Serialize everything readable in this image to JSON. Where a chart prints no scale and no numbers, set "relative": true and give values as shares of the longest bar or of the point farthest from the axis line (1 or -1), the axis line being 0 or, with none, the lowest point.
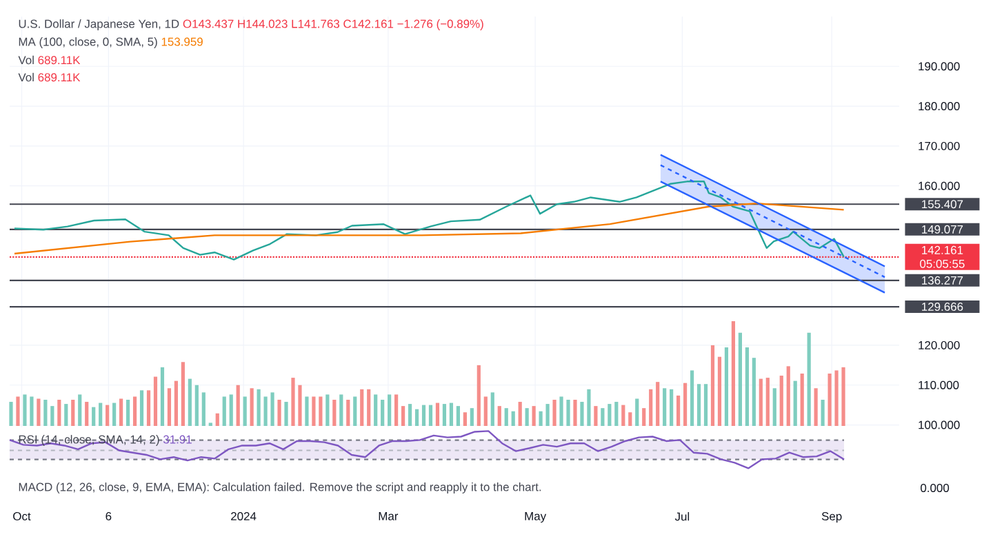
{
  "chart_data": [
    {
      "type": "line",
      "title": "U.S. Dollar / Japanese Yen, 1D",
      "annotations": [
        "O143.437 H144.023 L141.763 C142.161 −1.276 (−0.89%)",
        "MA (100, close, 0, SMA, 5)",
        "153.959",
        "Vol",
        "689.11K",
        "Vol",
        "689.11K",
        "05:05:55"
      ],
      "series": [
        {
          "color": "#26a69a",
          "x": [
            "2023-09-28",
            "2023-10-10",
            "2023-10-20",
            "2023-10-31",
            "2023-11-13",
            "2023-11-21",
            "2023-12-01",
            "2023-12-07",
            "2023-12-14",
            "2023-12-20",
            "2023-12-28",
            "2024-01-05",
            "2024-01-12",
            "2024-01-19",
            "2024-01-31",
            "2024-02-09",
            "2024-02-15",
            "2024-02-28",
            "2024-03-08",
            "2024-03-19",
            "2024-03-27",
            "2024-04-08",
            "2024-04-19",
            "2024-04-29",
            "2024-05-03",
            "2024-05-10",
            "2024-05-17",
            "2024-05-24",
            "2024-06-05",
            "2024-06-12",
            "2024-06-19",
            "2024-06-26",
            "2024-07-03",
            "2024-07-10",
            "2024-07-12",
            "2024-07-17",
            "2024-07-22",
            "2024-07-29",
            "2024-08-01",
            "2024-08-05",
            "2024-08-08",
            "2024-08-14",
            "2024-08-16",
            "2024-08-23",
            "2024-08-27",
            "2024-09-02",
            "2024-09-06"
          ],
          "values": [
            149.3,
            149.0,
            149.8,
            151.3,
            151.6,
            148.5,
            147.6,
            144.4,
            142.7,
            143.3,
            141.5,
            143.8,
            145.4,
            147.9,
            147.6,
            148.4,
            150.0,
            150.4,
            147.9,
            149.9,
            151.1,
            151.5,
            154.8,
            157.6,
            153.0,
            155.4,
            156.0,
            157.1,
            156.0,
            157.1,
            158.8,
            160.5,
            161.1,
            161.1,
            158.2,
            157.1,
            154.8,
            153.6,
            149.6,
            144.4,
            146.1,
            147.3,
            148.5,
            145.0,
            144.4,
            146.7,
            142.2
          ]
        },
        {
          "color": "#f57c00",
          "x": [
            "2023-09-28",
            "2023-11-15",
            "2023-12-20",
            "2024-02-01",
            "2024-03-15",
            "2024-04-25",
            "2024-06-01",
            "2024-07-12",
            "2024-08-01",
            "2024-09-06"
          ],
          "values": [
            143.0,
            146.0,
            147.6,
            147.6,
            147.6,
            148.1,
            150.4,
            154.8,
            155.6,
            154.0
          ]
        },
        {
          "color": "#2962ff",
          "line_style": "dashed",
          "x": [
            "2024-06-22",
            "2024-09-23"
          ],
          "values": [
            165.2,
            137.1
          ],
          "lower": [
            161.1,
            133.2
          ],
          "upper": [
            167.8,
            139.8
          ]
        },
        {
          "color": "#2962ff",
          "x": [
            "2024-06-22",
            "2024-09-23"
          ],
          "values": [
            167.8,
            139.8
          ]
        },
        {
          "color": "#2962ff",
          "x": [
            "2024-06-22",
            "2024-09-23"
          ],
          "values": [
            161.1,
            133.2
          ]
        }
      ],
      "ref_lines": [
        {
          "axis": "y",
          "value": 155.407,
          "label": "155.407",
          "color": "#434651"
        },
        {
          "axis": "y",
          "value": 149.077,
          "label": "149.077",
          "color": "#434651"
        },
        {
          "axis": "y",
          "value": 136.277,
          "label": "136.277",
          "color": "#434651"
        },
        {
          "axis": "y",
          "value": 129.666,
          "label": "129.666",
          "color": "#434651"
        },
        {
          "axis": "y",
          "value": 142.161,
          "label": "142.161",
          "color": "#f23645",
          "line_style": "dotted"
        }
      ],
      "xlim": [
        "2023-09-26",
        "2024-09-29"
      ],
      "ylim": [
        99.4,
        202.5
      ],
      "xticks": [
        {
          "value": "2023-10-01",
          "label": "Oct"
        },
        {
          "value": "2023-11-06",
          "label": "6"
        },
        {
          "value": "2024-01-01",
          "label": "2024"
        },
        {
          "value": "2024-03-01",
          "label": "Mar"
        },
        {
          "value": "2024-05-01",
          "label": "May"
        },
        {
          "value": "2024-07-01",
          "label": "Jul"
        },
        {
          "value": "2024-09-01",
          "label": "Sep"
        }
      ],
      "yticks": [
        {
          "value": 100,
          "label": "100.000"
        },
        {
          "value": 110,
          "label": "110.000"
        },
        {
          "value": 120,
          "label": "120.000"
        },
        {
          "value": 160,
          "label": "160.000"
        },
        {
          "value": 170,
          "label": "170.000"
        },
        {
          "value": 180,
          "label": "180.000"
        },
        {
          "value": 190,
          "label": "190.000"
        }
      ],
      "grid": true
    },
    {
      "type": "bar",
      "relative": true,
      "categories": [
        null,
        null,
        null,
        null,
        null,
        null,
        null,
        null,
        null,
        null,
        null,
        null,
        null,
        null,
        null,
        null,
        null,
        null,
        null,
        null,
        null,
        null,
        null,
        null,
        null,
        null,
        null,
        null,
        null,
        null,
        null,
        null,
        null,
        null,
        null,
        null,
        null,
        null,
        null,
        null,
        null,
        null,
        null,
        null,
        null,
        null,
        null,
        null,
        null,
        null,
        null,
        null,
        null,
        null,
        null,
        null,
        null,
        null,
        null,
        null,
        null,
        null,
        null,
        null,
        null,
        null,
        null,
        null,
        null,
        null,
        null,
        null,
        null,
        null,
        null,
        null,
        null,
        null,
        null,
        null,
        null,
        null,
        null,
        null,
        null,
        null,
        null,
        null,
        null,
        null,
        null,
        null,
        null,
        null,
        null,
        null,
        null,
        null,
        null,
        null,
        null,
        null,
        null,
        null,
        null,
        null,
        null,
        null,
        null,
        null,
        null,
        null,
        null,
        null,
        null,
        null,
        null,
        null,
        null,
        null,
        null,
        null
      ],
      "values": [
        0.23,
        0.28,
        0.3,
        0.28,
        0.26,
        0.25,
        0.19,
        0.25,
        0.21,
        0.25,
        0.3,
        0.23,
        0.18,
        0.22,
        0.2,
        0.22,
        0.26,
        0.25,
        0.28,
        0.34,
        0.34,
        0.47,
        0.56,
        0.36,
        0.43,
        0.61,
        0.45,
        0.39,
        0.32,
        0.03,
        0.12,
        0.28,
        0.3,
        0.39,
        0.28,
        0.36,
        0.35,
        0.28,
        0.32,
        0.25,
        0.23,
        0.46,
        0.39,
        0.28,
        0.28,
        0.28,
        0.3,
        0.25,
        0.3,
        0.25,
        0.28,
        0.35,
        0.35,
        0.3,
        0.25,
        0.3,
        0.3,
        0.19,
        0.21,
        0.16,
        0.2,
        0.2,
        0.22,
        0.21,
        0.22,
        0.19,
        0.13,
        0.17,
        0.58,
        0.28,
        0.32,
        0.19,
        0.17,
        0.14,
        0.23,
        0.17,
        0.19,
        0.14,
        0.21,
        0.25,
        0.28,
        0.25,
        0.25,
        0.23,
        0.35,
        0.19,
        0.17,
        0.21,
        0.23,
        0.2,
        0.13,
        0.26,
        0.17,
        0.35,
        0.42,
        0.36,
        0.35,
        0.29,
        0.41,
        0.53,
        0.4,
        0.4,
        0.77,
        0.66,
        0.75,
        1,
        0.89,
        0.75,
        0.65,
        0.45,
        0.46,
        0.36,
        0.48,
        0.57,
        0.43,
        0.5,
        0.89,
        0.36,
        0.25,
        0.5,
        0.53,
        0.56
      ],
      "colors": [
        "#7fcdbf",
        "#f58d8a",
        "#7fcdbf",
        "#7fcdbf",
        "#f58d8a",
        "#7fcdbf",
        "#7fcdbf",
        "#f58d8a",
        "#7fcdbf",
        "#f58d8a",
        "#7fcdbf",
        "#f58d8a",
        "#7fcdbf",
        "#7fcdbf",
        "#f58d8a",
        "#7fcdbf",
        "#f58d8a",
        "#7fcdbf",
        "#f58d8a",
        "#7fcdbf",
        "#f58d8a",
        "#f58d8a",
        "#7fcdbf",
        "#f58d8a",
        "#f58d8a",
        "#f58d8a",
        "#7fcdbf",
        "#7fcdbf",
        "#7fcdbf",
        "#7fcdbf",
        "#f58d8a",
        "#7fcdbf",
        "#7fcdbf",
        "#f58d8a",
        "#7fcdbf",
        "#f58d8a",
        "#7fcdbf",
        "#7fcdbf",
        "#7fcdbf",
        "#f58d8a",
        "#7fcdbf",
        "#f58d8a",
        "#f58d8a",
        "#7fcdbf",
        "#f58d8a",
        "#f58d8a",
        "#7fcdbf",
        "#f58d8a",
        "#7fcdbf",
        "#f58d8a",
        "#7fcdbf",
        "#f58d8a",
        "#f58d8a",
        "#7fcdbf",
        "#7fcdbf",
        "#7fcdbf",
        "#f58d8a",
        "#f58d8a",
        "#7fcdbf",
        "#7fcdbf",
        "#7fcdbf",
        "#7fcdbf",
        "#f58d8a",
        "#7fcdbf",
        "#7fcdbf",
        "#7fcdbf",
        "#f58d8a",
        "#7fcdbf",
        "#f58d8a",
        "#f58d8a",
        "#7fcdbf",
        "#f58d8a",
        "#7fcdbf",
        "#7fcdbf",
        "#f58d8a",
        "#7fcdbf",
        "#f58d8a",
        "#7fcdbf",
        "#7fcdbf",
        "#f58d8a",
        "#7fcdbf",
        "#7fcdbf",
        "#f58d8a",
        "#7fcdbf",
        "#7fcdbf",
        "#f58d8a",
        "#7fcdbf",
        "#7fcdbf",
        "#7fcdbf",
        "#f58d8a",
        "#f58d8a",
        "#7fcdbf",
        "#f58d8a",
        "#f58d8a",
        "#f58d8a",
        "#7fcdbf",
        "#7fcdbf",
        "#f58d8a",
        "#f58d8a",
        "#7fcdbf",
        "#7fcdbf",
        "#7fcdbf",
        "#f58d8a",
        "#f58d8a",
        "#7fcdbf",
        "#f58d8a",
        "#7fcdbf",
        "#7fcdbf",
        "#7fcdbf",
        "#f58d8a",
        "#f58d8a",
        "#7fcdbf",
        "#f58d8a",
        "#f58d8a",
        "#7fcdbf",
        "#f58d8a",
        "#7fcdbf",
        "#f58d8a",
        "#7fcdbf",
        "#f58d8a",
        "#f58d8a",
        "#f58d8a"
      ]
    },
    {
      "type": "line",
      "relative": true,
      "annotations": [
        "RSI (14, close, SMA, 14, 2)",
        "31.91"
      ],
      "categories": [
        null,
        null,
        null,
        null,
        null,
        null,
        null,
        null,
        null,
        null,
        null,
        null,
        null,
        null,
        null,
        null,
        null,
        null,
        null,
        null,
        null,
        null,
        null,
        null,
        null,
        null,
        null,
        null,
        null,
        null,
        null,
        null,
        null,
        null,
        null,
        null,
        null,
        null,
        null,
        null,
        null,
        null,
        null,
        null,
        null,
        null,
        null,
        null,
        null,
        null,
        null,
        null,
        null,
        null,
        null,
        null,
        null,
        null,
        null,
        null,
        null,
        null
      ],
      "series": [
        {
          "color": "#7e57c2",
          "values": [
            0.76,
            0.63,
            0.61,
            0.67,
            0.61,
            0.51,
            0.67,
            0.7,
            0.48,
            0.42,
            0.36,
            0.24,
            0.3,
            0.21,
            0.3,
            0.26,
            0.51,
            0.61,
            0.61,
            0.67,
            0.51,
            0.73,
            0.73,
            0.7,
            0.61,
            0.36,
            0.3,
            0.61,
            0.73,
            0.73,
            0.76,
            0.88,
            0.83,
            0.85,
            0.98,
            1,
            0.67,
            0.46,
            0.54,
            0.63,
            0.58,
            0.67,
            0.67,
            0.46,
            0.58,
            0.73,
            0.83,
            0.85,
            0.73,
            0.76,
            0.42,
            0.39,
            0.24,
            0.15,
            0,
            0.24,
            0.26,
            0.42,
            0.3,
            0.32,
            0.46,
            0.24
          ]
        }
      ],
      "bands": [
        {
          "axis": "y",
          "from": 0.237,
          "to": 0.756,
          "color": "#ede7f6"
        }
      ],
      "ref_lines": [
        {
          "axis": "y",
          "value": 0.756,
          "color": "#787b86",
          "line_style": "dashed"
        },
        {
          "axis": "y",
          "value": 0.48,
          "color": "#b2b5be",
          "line_style": "dashed"
        },
        {
          "axis": "y",
          "value": 0.237,
          "color": "#787b86",
          "line_style": "dashed"
        }
      ]
    },
    {
      "type": "other",
      "annotations": [
        "MACD (12, 26, close, 9, EMA, EMA): Calculation failed. Remove the script and reapply it to the chart.",
        "0.000"
      ]
    }
  ]
}
